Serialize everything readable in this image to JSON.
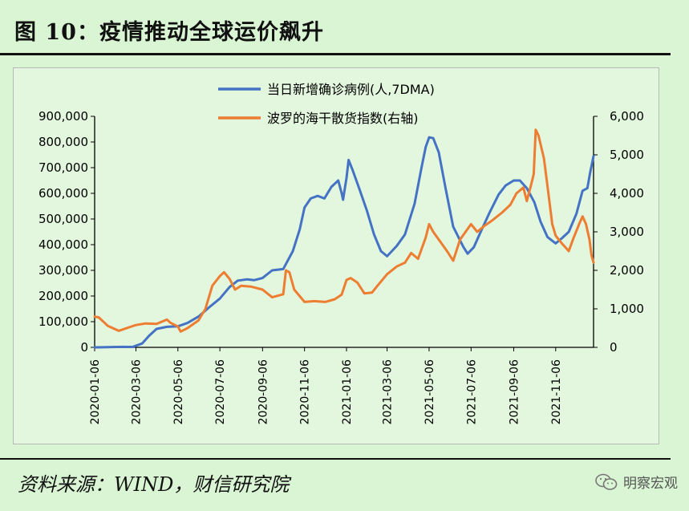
{
  "figure": {
    "title": "图 10：疫情推动全球运价飙升",
    "source": "资料来源：WIND，财信研究院",
    "watermark": "明察宏观",
    "watermark_icon": "wechat-icon"
  },
  "chart_data": {
    "type": "line",
    "colors": {
      "cases": "#4472c4",
      "bdi": "#ed7d31"
    },
    "x_tick_labels": [
      "2020-01-06",
      "2020-03-06",
      "2020-05-06",
      "2020-07-06",
      "2020-09-06",
      "2020-11-06",
      "2021-01-06",
      "2021-03-06",
      "2021-05-06",
      "2021-07-06",
      "2021-09-06",
      "2021-11-06"
    ],
    "y_left": {
      "lim": [
        0,
        900000
      ],
      "ticks": [
        0,
        100000,
        200000,
        300000,
        400000,
        500000,
        600000,
        700000,
        800000,
        900000
      ],
      "tick_labels": [
        "0",
        "100,000",
        "200,000",
        "300,000",
        "400,000",
        "500,000",
        "600,000",
        "700,000",
        "800,000",
        "900,000"
      ]
    },
    "y_right": {
      "lim": [
        0,
        6000
      ],
      "ticks": [
        0,
        1000,
        2000,
        3000,
        4000,
        5000,
        6000
      ],
      "tick_labels": [
        "0",
        "1,000",
        "2,000",
        "3,000",
        "4,000",
        "5,000",
        "6,000"
      ]
    },
    "legend_position": "top",
    "x_start": "2020-01-06",
    "x_end": "2021-12-31",
    "series": [
      {
        "name": "当日新增确诊病例(人,7DMA)",
        "axis": "left",
        "points": [
          [
            "2020-01-06",
            0
          ],
          [
            "2020-02-15",
            2000
          ],
          [
            "2020-03-01",
            1500
          ],
          [
            "2020-03-15",
            15000
          ],
          [
            "2020-03-25",
            45000
          ],
          [
            "2020-04-05",
            72000
          ],
          [
            "2020-04-20",
            80000
          ],
          [
            "2020-05-06",
            82000
          ],
          [
            "2020-05-20",
            95000
          ],
          [
            "2020-06-05",
            120000
          ],
          [
            "2020-06-20",
            155000
          ],
          [
            "2020-07-06",
            190000
          ],
          [
            "2020-07-20",
            235000
          ],
          [
            "2020-08-01",
            260000
          ],
          [
            "2020-08-15",
            265000
          ],
          [
            "2020-08-25",
            262000
          ],
          [
            "2020-09-06",
            270000
          ],
          [
            "2020-09-20",
            300000
          ],
          [
            "2020-10-06",
            305000
          ],
          [
            "2020-10-20",
            375000
          ],
          [
            "2020-10-30",
            460000
          ],
          [
            "2020-11-06",
            545000
          ],
          [
            "2020-11-15",
            580000
          ],
          [
            "2020-11-25",
            590000
          ],
          [
            "2020-12-05",
            580000
          ],
          [
            "2020-12-15",
            625000
          ],
          [
            "2020-12-25",
            650000
          ],
          [
            "2020-12-30",
            600000
          ],
          [
            "2021-01-01",
            575000
          ],
          [
            "2021-01-06",
            660000
          ],
          [
            "2021-01-09",
            730000
          ],
          [
            "2021-01-15",
            690000
          ],
          [
            "2021-01-25",
            615000
          ],
          [
            "2021-02-05",
            530000
          ],
          [
            "2021-02-15",
            440000
          ],
          [
            "2021-02-25",
            375000
          ],
          [
            "2021-03-06",
            355000
          ],
          [
            "2021-03-20",
            395000
          ],
          [
            "2021-04-01",
            440000
          ],
          [
            "2021-04-15",
            560000
          ],
          [
            "2021-04-25",
            700000
          ],
          [
            "2021-05-01",
            780000
          ],
          [
            "2021-05-06",
            818000
          ],
          [
            "2021-05-12",
            815000
          ],
          [
            "2021-05-20",
            760000
          ],
          [
            "2021-05-30",
            620000
          ],
          [
            "2021-06-10",
            470000
          ],
          [
            "2021-06-25",
            390000
          ],
          [
            "2021-07-01",
            365000
          ],
          [
            "2021-07-10",
            390000
          ],
          [
            "2021-07-20",
            450000
          ],
          [
            "2021-08-01",
            520000
          ],
          [
            "2021-08-15",
            595000
          ],
          [
            "2021-08-25",
            630000
          ],
          [
            "2021-09-06",
            650000
          ],
          [
            "2021-09-15",
            650000
          ],
          [
            "2021-09-25",
            620000
          ],
          [
            "2021-10-06",
            565000
          ],
          [
            "2021-10-15",
            490000
          ],
          [
            "2021-10-25",
            430000
          ],
          [
            "2021-11-06",
            405000
          ],
          [
            "2021-11-15",
            425000
          ],
          [
            "2021-11-25",
            450000
          ],
          [
            "2021-12-06",
            520000
          ],
          [
            "2021-12-15",
            610000
          ],
          [
            "2021-12-22",
            620000
          ],
          [
            "2021-12-26",
            680000
          ],
          [
            "2021-12-31",
            745000
          ]
        ]
      },
      {
        "name": "波罗的海干散货指数(右轴)",
        "axis": "right",
        "points": [
          [
            "2020-01-06",
            800
          ],
          [
            "2020-01-12",
            780
          ],
          [
            "2020-01-25",
            560
          ],
          [
            "2020-02-10",
            430
          ],
          [
            "2020-02-25",
            520
          ],
          [
            "2020-03-06",
            580
          ],
          [
            "2020-03-20",
            620
          ],
          [
            "2020-04-05",
            610
          ],
          [
            "2020-04-20",
            720
          ],
          [
            "2020-04-25",
            640
          ],
          [
            "2020-05-06",
            540
          ],
          [
            "2020-05-10",
            410
          ],
          [
            "2020-05-20",
            500
          ],
          [
            "2020-06-05",
            700
          ],
          [
            "2020-06-15",
            1000
          ],
          [
            "2020-06-25",
            1600
          ],
          [
            "2020-07-06",
            1850
          ],
          [
            "2020-07-12",
            1950
          ],
          [
            "2020-07-20",
            1780
          ],
          [
            "2020-07-28",
            1500
          ],
          [
            "2020-08-06",
            1600
          ],
          [
            "2020-08-20",
            1580
          ],
          [
            "2020-09-06",
            1500
          ],
          [
            "2020-09-20",
            1300
          ],
          [
            "2020-10-06",
            1380
          ],
          [
            "2020-10-10",
            2000
          ],
          [
            "2020-10-15",
            1950
          ],
          [
            "2020-10-22",
            1500
          ],
          [
            "2020-11-06",
            1180
          ],
          [
            "2020-11-20",
            1200
          ],
          [
            "2020-12-06",
            1180
          ],
          [
            "2020-12-20",
            1250
          ],
          [
            "2020-12-30",
            1370
          ],
          [
            "2021-01-06",
            1750
          ],
          [
            "2021-01-12",
            1800
          ],
          [
            "2021-01-22",
            1680
          ],
          [
            "2021-02-01",
            1400
          ],
          [
            "2021-02-12",
            1420
          ],
          [
            "2021-02-20",
            1600
          ],
          [
            "2021-03-06",
            1900
          ],
          [
            "2021-03-20",
            2100
          ],
          [
            "2021-04-01",
            2200
          ],
          [
            "2021-04-10",
            2450
          ],
          [
            "2021-04-20",
            2300
          ],
          [
            "2021-05-01",
            2850
          ],
          [
            "2021-05-06",
            3200
          ],
          [
            "2021-05-12",
            3000
          ],
          [
            "2021-05-20",
            2800
          ],
          [
            "2021-06-01",
            2500
          ],
          [
            "2021-06-10",
            2250
          ],
          [
            "2021-06-20",
            2800
          ],
          [
            "2021-07-06",
            3200
          ],
          [
            "2021-07-15",
            3000
          ],
          [
            "2021-07-25",
            3150
          ],
          [
            "2021-08-06",
            3300
          ],
          [
            "2021-08-20",
            3500
          ],
          [
            "2021-09-01",
            3700
          ],
          [
            "2021-09-10",
            4000
          ],
          [
            "2021-09-20",
            4150
          ],
          [
            "2021-09-25",
            3800
          ],
          [
            "2021-10-01",
            4200
          ],
          [
            "2021-10-05",
            4500
          ],
          [
            "2021-10-08",
            5650
          ],
          [
            "2021-10-12",
            5500
          ],
          [
            "2021-10-20",
            4900
          ],
          [
            "2021-10-25",
            4200
          ],
          [
            "2021-11-01",
            3200
          ],
          [
            "2021-11-06",
            2900
          ],
          [
            "2021-11-15",
            2700
          ],
          [
            "2021-11-25",
            2500
          ],
          [
            "2021-12-01",
            2800
          ],
          [
            "2021-12-10",
            3200
          ],
          [
            "2021-12-15",
            3400
          ],
          [
            "2021-12-20",
            3200
          ],
          [
            "2021-12-25",
            2800
          ],
          [
            "2021-12-28",
            2400
          ],
          [
            "2021-12-31",
            2200
          ]
        ]
      }
    ]
  }
}
